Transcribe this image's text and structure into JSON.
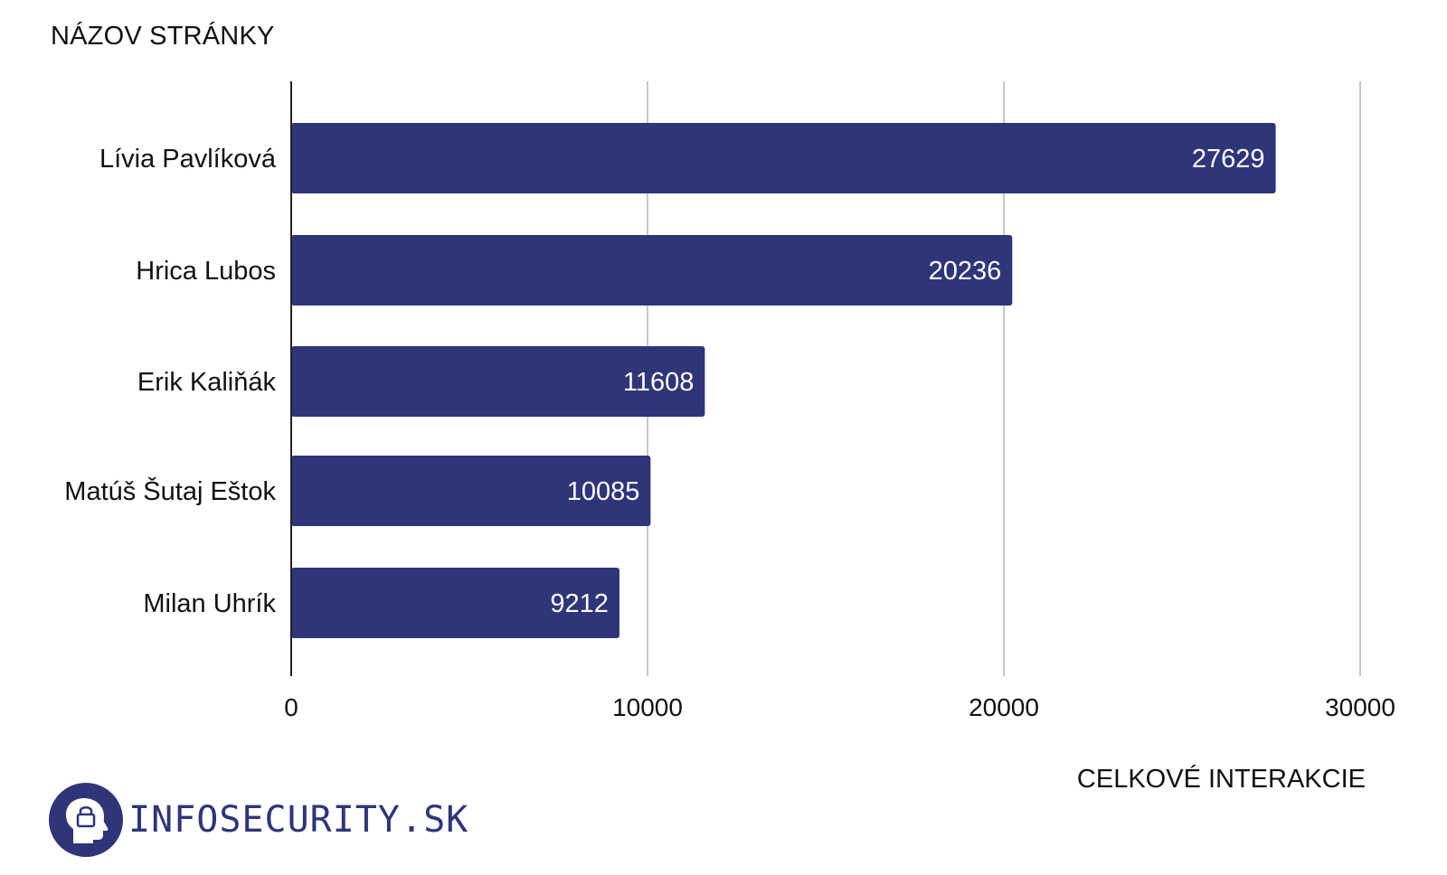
{
  "brand": {
    "name": "INFOSECURITY.SK",
    "color": "#2e3579",
    "logo_icon": "head-with-padlock-icon"
  },
  "chart_data": {
    "type": "bar",
    "orientation": "horizontal",
    "title": "",
    "ylabel": "NÁZOV STRÁNKY",
    "xlabel": "CELKOVÉ INTERAKCIE",
    "categories": [
      "Lívia Pavlíková",
      "Hrica Lubos",
      "Erik Kaliňák",
      "Matúš Šutaj Eštok",
      "Milan Uhrík"
    ],
    "values": [
      27629,
      20236,
      11608,
      10085,
      9212
    ],
    "xlim": [
      0,
      30000
    ],
    "xticks": [
      "0",
      "10000",
      "20000",
      "30000"
    ],
    "bar_color": "#2e3579",
    "gridlines": "vertical",
    "data_labels": "inside-end"
  }
}
